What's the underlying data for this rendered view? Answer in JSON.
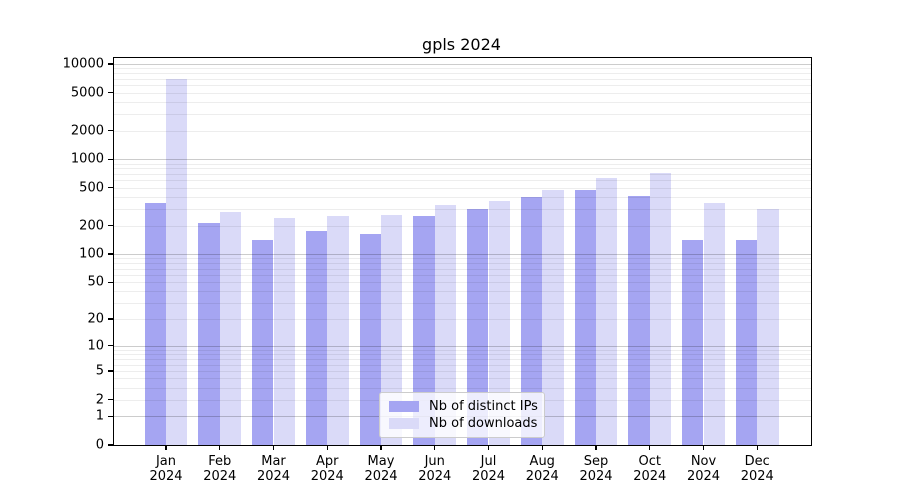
{
  "chart_data": {
    "type": "bar",
    "title": "gpls 2024",
    "categories": [
      "Jan",
      "Feb",
      "Mar",
      "Apr",
      "May",
      "Jun",
      "Jul",
      "Aug",
      "Sep",
      "Oct",
      "Nov",
      "Dec"
    ],
    "xtick_year": "2024",
    "series": [
      {
        "name": "Nb of distinct IPs",
        "color": "#a5a5f2",
        "values": [
          350,
          215,
          140,
          175,
          165,
          250,
          300,
          400,
          475,
          415,
          140,
          140
        ]
      },
      {
        "name": "Nb of downloads",
        "color": "#dadaf8",
        "values": [
          7000,
          280,
          240,
          250,
          260,
          330,
          360,
          475,
          640,
          720,
          350,
          300
        ]
      }
    ],
    "xlabel": "",
    "ylabel": "",
    "yscale": "log(1+x)",
    "ylim": [
      0,
      11500
    ],
    "yticks": [
      0,
      1,
      2,
      5,
      10,
      20,
      50,
      100,
      200,
      500,
      1000,
      2000,
      5000,
      10000
    ],
    "grid": true,
    "legend_position": "lower center"
  }
}
